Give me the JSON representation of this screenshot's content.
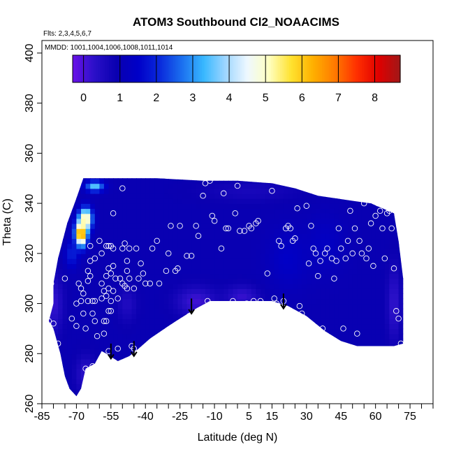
{
  "chart_data": {
    "type": "heatmap",
    "title": "ATOM3 Southbound Cl2_NOAACIMS",
    "annotations": {
      "flights": "Flts: 2,3,4,5,6,7",
      "dates": "MMDD: 1001,1004,1006,1008,1011,1014"
    },
    "xlabel": "Latitude (deg N)",
    "ylabel": "Theta (C)",
    "xlim": [
      -85,
      85
    ],
    "ylim": [
      260,
      405
    ],
    "x_ticks": [
      -85,
      -70,
      -55,
      -40,
      -25,
      -10,
      5,
      15,
      30,
      45,
      60,
      75
    ],
    "x_tick_labels": [
      "-85",
      "-70",
      "-55",
      "-40",
      "-25",
      "-10",
      "5",
      "15",
      "30",
      "45",
      "60",
      "75"
    ],
    "y_ticks": [
      260,
      280,
      300,
      320,
      340,
      360,
      380,
      400
    ],
    "y_tick_labels": [
      "260",
      "280",
      "300",
      "320",
      "340",
      "360",
      "380",
      "400"
    ],
    "colorbar": {
      "range": [
        -0.3,
        8.7
      ],
      "ticks": [
        0,
        1,
        2,
        3,
        4,
        5,
        6,
        7,
        8
      ],
      "tick_labels": [
        "0",
        "1",
        "2",
        "3",
        "4",
        "5",
        "6",
        "7",
        "8"
      ],
      "colors": [
        "#6a12e8",
        "#2a10c8",
        "#0a00b0",
        "#0000c8",
        "#0a2adc",
        "#1b6fef",
        "#38b8ff",
        "#9fd6ff",
        "#eef8ff",
        "#ffffc0",
        "#ffe230",
        "#ffb000",
        "#ff7a00",
        "#ff3000",
        "#e00000",
        "#a01818"
      ]
    },
    "field": {
      "top_theta": [
        [
          -80,
          308
        ],
        [
          -78,
          318
        ],
        [
          -74,
          332
        ],
        [
          -70,
          342
        ],
        [
          -67,
          350
        ],
        [
          -55,
          350
        ],
        [
          -35,
          350
        ],
        [
          -15,
          349
        ],
        [
          0,
          349
        ],
        [
          15,
          348
        ],
        [
          25,
          346
        ],
        [
          35,
          343
        ],
        [
          50,
          341
        ],
        [
          58,
          340
        ],
        [
          63,
          338
        ],
        [
          68,
          336
        ],
        [
          70,
          325
        ],
        [
          72,
          310
        ],
        [
          72,
          284
        ]
      ],
      "bottom_theta": [
        [
          72,
          284
        ],
        [
          68,
          283
        ],
        [
          52,
          283
        ],
        [
          45,
          285
        ],
        [
          38,
          289
        ],
        [
          30,
          295
        ],
        [
          22,
          299
        ],
        [
          15,
          301
        ],
        [
          10,
          301
        ],
        [
          5,
          301
        ],
        [
          -5,
          301
        ],
        [
          -12,
          301
        ],
        [
          -18,
          298
        ],
        [
          -25,
          294
        ],
        [
          -30,
          291
        ],
        [
          -38,
          286
        ],
        [
          -43,
          282
        ],
        [
          -47,
          279
        ],
        [
          -52,
          277
        ],
        [
          -57,
          280
        ],
        [
          -59,
          281
        ],
        [
          -62,
          276
        ],
        [
          -66,
          274
        ],
        [
          -68,
          266
        ],
        [
          -70,
          263
        ],
        [
          -73,
          266
        ],
        [
          -75,
          271
        ],
        [
          -77,
          280
        ],
        [
          -80,
          290
        ],
        [
          -82,
          293
        ],
        [
          -80,
          300
        ],
        [
          -80,
          308
        ]
      ],
      "background_value": 0.95,
      "features": [
        {
          "lat": -68,
          "theta": 328,
          "sigma_lat": 1.8,
          "sigma_theta": 3.5,
          "value": 7.3
        },
        {
          "lat": -66,
          "theta": 334,
          "sigma_lat": 2.0,
          "sigma_theta": 3.0,
          "value": 5.6
        },
        {
          "lat": -62,
          "theta": 347,
          "sigma_lat": 2.8,
          "sigma_theta": 1.5,
          "value": 3.6
        },
        {
          "lat": -72,
          "theta": 320,
          "sigma_lat": 2.0,
          "sigma_theta": 4.0,
          "value": 2.0
        },
        {
          "lat": -80,
          "theta": 300,
          "sigma_lat": 3.0,
          "sigma_theta": 8.0,
          "value": 0.2
        },
        {
          "lat": -66,
          "theta": 272,
          "sigma_lat": 3.0,
          "sigma_theta": 5.0,
          "value": 0.3
        },
        {
          "lat": -18,
          "theta": 301,
          "sigma_lat": 6.0,
          "sigma_theta": 4.0,
          "value": 0.1
        },
        {
          "lat": 2,
          "theta": 303,
          "sigma_lat": 5.0,
          "sigma_theta": 3.0,
          "value": 0.2
        },
        {
          "lat": 68,
          "theta": 300,
          "sigma_lat": 2.0,
          "sigma_theta": 10.0,
          "value": 0.2
        },
        {
          "lat": -48,
          "theta": 300,
          "sigma_lat": 3.0,
          "sigma_theta": 5.0,
          "value": 0.5
        },
        {
          "lat": 22,
          "theta": 318,
          "sigma_lat": 6.0,
          "sigma_theta": 8.0,
          "value": 1.45
        },
        {
          "lat": 38,
          "theta": 324,
          "sigma_lat": 6.0,
          "sigma_theta": 8.0,
          "value": 1.35
        },
        {
          "lat": 5,
          "theta": 345,
          "sigma_lat": 15.0,
          "sigma_theta": 3.0,
          "value": 0.65
        }
      ]
    },
    "observations": [
      [
        -81,
        308
      ],
      [
        -82,
        293
      ],
      [
        -80,
        292
      ],
      [
        -78,
        284
      ],
      [
        -75,
        310
      ],
      [
        -72,
        294
      ],
      [
        -70,
        300
      ],
      [
        -70,
        291
      ],
      [
        -69,
        308
      ],
      [
        -68,
        306
      ],
      [
        -68,
        301
      ],
      [
        -67,
        304
      ],
      [
        -67,
        296
      ],
      [
        -66,
        290
      ],
      [
        -66,
        274
      ],
      [
        -66,
        266
      ],
      [
        -65,
        313
      ],
      [
        -65,
        309
      ],
      [
        -65,
        301
      ],
      [
        -64,
        323
      ],
      [
        -64,
        317
      ],
      [
        -64,
        311
      ],
      [
        -63,
        301
      ],
      [
        -63,
        296
      ],
      [
        -63,
        275
      ],
      [
        -62,
        318
      ],
      [
        -62,
        301
      ],
      [
        -62,
        293
      ],
      [
        -61,
        287
      ],
      [
        -60,
        325
      ],
      [
        -60,
        274
      ],
      [
        -59,
        320
      ],
      [
        -59,
        308
      ],
      [
        -59,
        302
      ],
      [
        -58,
        305
      ],
      [
        -58,
        293
      ],
      [
        -58,
        288
      ],
      [
        -57,
        323
      ],
      [
        -57,
        311
      ],
      [
        -57,
        303
      ],
      [
        -57,
        293
      ],
      [
        -56,
        323
      ],
      [
        -56,
        314
      ],
      [
        -56,
        306
      ],
      [
        -56,
        297
      ],
      [
        -56,
        281
      ],
      [
        -55,
        323
      ],
      [
        -55,
        312
      ],
      [
        -55,
        301
      ],
      [
        -55,
        297
      ],
      [
        -54,
        336
      ],
      [
        -54,
        322
      ],
      [
        -54,
        315
      ],
      [
        -54,
        305
      ],
      [
        -53,
        310
      ],
      [
        -52,
        302
      ],
      [
        -52,
        282
      ],
      [
        -51,
        310
      ],
      [
        -50,
        346
      ],
      [
        -50,
        322
      ],
      [
        -50,
        308
      ],
      [
        -49,
        324
      ],
      [
        -49,
        307
      ],
      [
        -48,
        317
      ],
      [
        -48,
        313
      ],
      [
        -48,
        306
      ],
      [
        -47,
        322
      ],
      [
        -47,
        310
      ],
      [
        -46,
        283
      ],
      [
        -45,
        306
      ],
      [
        -45,
        282
      ],
      [
        -44,
        322
      ],
      [
        -43,
        310
      ],
      [
        -42,
        316
      ],
      [
        -41,
        312
      ],
      [
        -40,
        308
      ],
      [
        -38,
        308
      ],
      [
        -37,
        322
      ],
      [
        -35,
        325
      ],
      [
        -34,
        308
      ],
      [
        -31,
        313
      ],
      [
        -30,
        320
      ],
      [
        -29,
        331
      ],
      [
        -27,
        313
      ],
      [
        -26,
        314
      ],
      [
        -25,
        331
      ],
      [
        -24,
        293
      ],
      [
        -22,
        319
      ],
      [
        -21,
        295
      ],
      [
        -20,
        319
      ],
      [
        -18,
        331
      ],
      [
        -17,
        327
      ],
      [
        -15,
        343
      ],
      [
        -14,
        348
      ],
      [
        -13,
        301
      ],
      [
        -12,
        349
      ],
      [
        -11,
        335
      ],
      [
        -10,
        333
      ],
      [
        -7,
        322
      ],
      [
        -6,
        344
      ],
      [
        -5,
        330
      ],
      [
        -4,
        330
      ],
      [
        -2,
        301
      ],
      [
        -1,
        336
      ],
      [
        0,
        347
      ],
      [
        1,
        329
      ],
      [
        3,
        329
      ],
      [
        4,
        300
      ],
      [
        5,
        331
      ],
      [
        6,
        330
      ],
      [
        7,
        301
      ],
      [
        8,
        332
      ],
      [
        9,
        333
      ],
      [
        10,
        301
      ],
      [
        13,
        312
      ],
      [
        15,
        345
      ],
      [
        16,
        302
      ],
      [
        17,
        300
      ],
      [
        18,
        325
      ],
      [
        19,
        323
      ],
      [
        20,
        301
      ],
      [
        21,
        330
      ],
      [
        22,
        331
      ],
      [
        23,
        330
      ],
      [
        24,
        325
      ],
      [
        25,
        326
      ],
      [
        26,
        338
      ],
      [
        27,
        299
      ],
      [
        28,
        296
      ],
      [
        30,
        339
      ],
      [
        31,
        316
      ],
      [
        32,
        331
      ],
      [
        33,
        322
      ],
      [
        34,
        320
      ],
      [
        35,
        311
      ],
      [
        36,
        317
      ],
      [
        37,
        290
      ],
      [
        38,
        320
      ],
      [
        39,
        322
      ],
      [
        40,
        286
      ],
      [
        41,
        318
      ],
      [
        42,
        310
      ],
      [
        43,
        317
      ],
      [
        44,
        330
      ],
      [
        45,
        322
      ],
      [
        46,
        290
      ],
      [
        47,
        318
      ],
      [
        48,
        325
      ],
      [
        49,
        337
      ],
      [
        50,
        320
      ],
      [
        51,
        330
      ],
      [
        52,
        288
      ],
      [
        53,
        325
      ],
      [
        54,
        320
      ],
      [
        55,
        340
      ],
      [
        56,
        318
      ],
      [
        57,
        322
      ],
      [
        58,
        332
      ],
      [
        59,
        315
      ],
      [
        60,
        335
      ],
      [
        61,
        340
      ],
      [
        62,
        337
      ],
      [
        63,
        330
      ],
      [
        64,
        318
      ],
      [
        65,
        336
      ],
      [
        66,
        337
      ],
      [
        67,
        330
      ],
      [
        68,
        314
      ],
      [
        69,
        297
      ],
      [
        70,
        294
      ],
      [
        71,
        284
      ]
    ],
    "arrows": [
      {
        "lat": -55,
        "theta_start": 284,
        "theta_end": 278
      },
      {
        "lat": -45,
        "theta_start": 285,
        "theta_end": 279
      },
      {
        "lat": -20,
        "theta_start": 302,
        "theta_end": 296
      },
      {
        "lat": 20,
        "theta_start": 304,
        "theta_end": 298
      }
    ]
  }
}
